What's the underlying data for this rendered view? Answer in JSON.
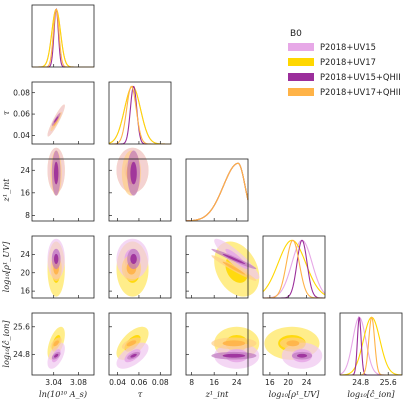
{
  "chart_data": {
    "type": "corner",
    "title": "",
    "parameters": [
      {
        "key": "As",
        "label": "ln(10¹⁰ A_s)",
        "range": [
          3.005,
          3.105
        ],
        "ticks": [
          3.04,
          3.08
        ]
      },
      {
        "key": "tau",
        "label": "τ",
        "range": [
          0.032,
          0.09
        ],
        "ticks": [
          0.04,
          0.06,
          0.08
        ]
      },
      {
        "key": "zint",
        "label": "z¹_int",
        "range": [
          6.0,
          28.0
        ],
        "ticks": [
          8,
          16,
          24
        ]
      },
      {
        "key": "rho",
        "label": "log₁₀[ρ¹_UV]",
        "range": [
          14.5,
          28.0
        ],
        "ticks": [
          16,
          20,
          24
        ]
      },
      {
        "key": "cion",
        "label": "log₁₀[ĉ_ion]",
        "range": [
          24.2,
          26.0
        ],
        "ticks": [
          24.8,
          25.6
        ]
      }
    ],
    "legend": {
      "title": "B0",
      "position": "top-right",
      "entries": [
        "P2018+UV15",
        "P2018+UV17",
        "P2018+UV15+QHII",
        "P2018+UV17+QHII"
      ]
    },
    "series": [
      {
        "name": "P2018+UV15",
        "color": "#E7A8E7",
        "style": "filled",
        "mean": {
          "As": 3.044,
          "tau": 0.054,
          "zint": 24.0,
          "rho": 23.0,
          "cion": 24.76
        },
        "sigma": {
          "As": 0.007,
          "tau": 0.0075,
          "zint": 4.0,
          "rho": 2.2,
          "cion": 0.19
        }
      },
      {
        "name": "P2018+UV17",
        "color": "#FFD700",
        "style": "filled",
        "mean": {
          "As": 3.044,
          "tau": 0.054,
          "zint": 24.0,
          "rho": 20.8,
          "cion": 25.12
        },
        "sigma": {
          "As": 0.007,
          "tau": 0.0075,
          "zint": 4.0,
          "rho": 3.0,
          "cion": 0.24
        }
      },
      {
        "name": "P2018+UV15+QHII",
        "color": "#9B2E9B",
        "style": "filled",
        "mean": {
          "As": 3.044,
          "tau": 0.055,
          "zint": 23.0,
          "rho": 23.0,
          "cion": 24.76
        },
        "sigma": {
          "As": 0.0035,
          "tau": 0.003,
          "zint": 4.0,
          "rho": 1.1,
          "cion": 0.055
        }
      },
      {
        "name": "P2018+UV17+QHII",
        "color": "#FFB347",
        "style": "filled",
        "mean": {
          "As": 3.044,
          "tau": 0.053,
          "zint": 23.0,
          "rho": 21.0,
          "cion": 25.12
        },
        "sigma": {
          "As": 0.0045,
          "tau": 0.0045,
          "zint": 4.0,
          "rho": 1.4,
          "cion": 0.085
        }
      }
    ]
  }
}
